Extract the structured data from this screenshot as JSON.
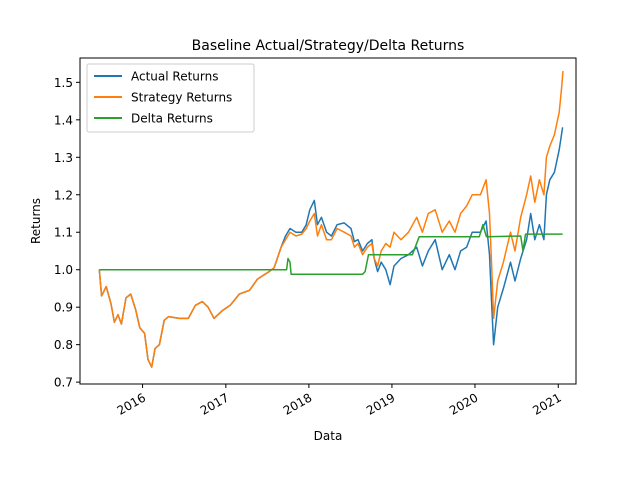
{
  "chart_data": {
    "type": "line",
    "title": "Baseline Actual/Strategy/Delta Returns",
    "xlabel": "Data",
    "ylabel": "Returns",
    "xlim": [
      "2015-04-01",
      "2021-03-20"
    ],
    "ylim": [
      0.695,
      1.565
    ],
    "x_ticks": [
      "2016",
      "2017",
      "2018",
      "2019",
      "2020",
      "2021"
    ],
    "y_ticks": [
      "0.7",
      "0.8",
      "0.9",
      "1.0",
      "1.1",
      "1.2",
      "1.3",
      "1.4",
      "1.5"
    ],
    "grid": false,
    "legend": "top-left",
    "series": [
      {
        "name": "Actual Returns",
        "color": "#1f77b4",
        "points": [
          [
            "2015-06-25",
            1.0
          ],
          [
            "2015-07-05",
            0.93
          ],
          [
            "2015-07-25",
            0.955
          ],
          [
            "2015-08-15",
            0.91
          ],
          [
            "2015-08-30",
            0.86
          ],
          [
            "2015-09-15",
            0.88
          ],
          [
            "2015-09-30",
            0.855
          ],
          [
            "2015-10-20",
            0.925
          ],
          [
            "2015-11-10",
            0.935
          ],
          [
            "2015-12-01",
            0.895
          ],
          [
            "2015-12-20",
            0.845
          ],
          [
            "2016-01-10",
            0.83
          ],
          [
            "2016-01-25",
            0.76
          ],
          [
            "2016-02-10",
            0.74
          ],
          [
            "2016-02-25",
            0.79
          ],
          [
            "2016-03-15",
            0.8
          ],
          [
            "2016-04-05",
            0.865
          ],
          [
            "2016-04-25",
            0.875
          ],
          [
            "2016-06-10",
            0.87
          ],
          [
            "2016-07-20",
            0.87
          ],
          [
            "2016-08-20",
            0.905
          ],
          [
            "2016-09-20",
            0.915
          ],
          [
            "2016-10-15",
            0.9
          ],
          [
            "2016-11-10",
            0.87
          ],
          [
            "2016-12-15",
            0.89
          ],
          [
            "2017-01-20",
            0.905
          ],
          [
            "2017-03-01",
            0.935
          ],
          [
            "2017-04-15",
            0.945
          ],
          [
            "2017-05-20",
            0.975
          ],
          [
            "2017-06-15",
            0.985
          ],
          [
            "2017-07-10",
            0.995
          ],
          [
            "2017-08-01",
            1.005
          ],
          [
            "2017-08-15",
            1.03
          ],
          [
            "2017-09-01",
            1.06
          ],
          [
            "2017-09-20",
            1.09
          ],
          [
            "2017-10-10",
            1.11
          ],
          [
            "2017-11-05",
            1.1
          ],
          [
            "2017-12-01",
            1.1
          ],
          [
            "2017-12-20",
            1.12
          ],
          [
            "2018-01-05",
            1.16
          ],
          [
            "2018-01-25",
            1.185
          ],
          [
            "2018-02-08",
            1.12
          ],
          [
            "2018-02-25",
            1.14
          ],
          [
            "2018-03-20",
            1.1
          ],
          [
            "2018-04-10",
            1.09
          ],
          [
            "2018-05-05",
            1.12
          ],
          [
            "2018-06-05",
            1.125
          ],
          [
            "2018-07-05",
            1.11
          ],
          [
            "2018-07-20",
            1.075
          ],
          [
            "2018-08-05",
            1.08
          ],
          [
            "2018-08-25",
            1.05
          ],
          [
            "2018-09-15",
            1.07
          ],
          [
            "2018-10-05",
            1.08
          ],
          [
            "2018-10-15",
            1.03
          ],
          [
            "2018-10-30",
            0.995
          ],
          [
            "2018-11-15",
            1.02
          ],
          [
            "2018-12-05",
            1.0
          ],
          [
            "2018-12-24",
            0.96
          ],
          [
            "2019-01-10",
            1.01
          ],
          [
            "2019-02-10",
            1.03
          ],
          [
            "2019-03-15",
            1.04
          ],
          [
            "2019-04-20",
            1.06
          ],
          [
            "2019-05-15",
            1.01
          ],
          [
            "2019-06-10",
            1.05
          ],
          [
            "2019-07-10",
            1.08
          ],
          [
            "2019-08-10",
            1.0
          ],
          [
            "2019-09-10",
            1.04
          ],
          [
            "2019-10-05",
            1.0
          ],
          [
            "2019-10-30",
            1.05
          ],
          [
            "2019-11-25",
            1.06
          ],
          [
            "2019-12-20",
            1.1
          ],
          [
            "2020-01-25",
            1.1
          ],
          [
            "2020-02-19",
            1.13
          ],
          [
            "2020-03-05",
            1.04
          ],
          [
            "2020-03-15",
            0.9
          ],
          [
            "2020-03-23",
            0.8
          ],
          [
            "2020-04-10",
            0.9
          ],
          [
            "2020-05-05",
            0.95
          ],
          [
            "2020-06-05",
            1.02
          ],
          [
            "2020-06-25",
            0.97
          ],
          [
            "2020-07-20",
            1.03
          ],
          [
            "2020-08-15",
            1.08
          ],
          [
            "2020-09-02",
            1.15
          ],
          [
            "2020-09-20",
            1.08
          ],
          [
            "2020-10-10",
            1.12
          ],
          [
            "2020-10-30",
            1.08
          ],
          [
            "2020-11-10",
            1.2
          ],
          [
            "2020-11-25",
            1.24
          ],
          [
            "2020-12-15",
            1.26
          ],
          [
            "2021-01-05",
            1.32
          ],
          [
            "2021-01-20",
            1.38
          ]
        ]
      },
      {
        "name": "Strategy Returns",
        "color": "#ff7f0e",
        "points": [
          [
            "2015-06-25",
            1.0
          ],
          [
            "2015-07-05",
            0.93
          ],
          [
            "2015-07-25",
            0.955
          ],
          [
            "2015-08-15",
            0.91
          ],
          [
            "2015-08-30",
            0.86
          ],
          [
            "2015-09-15",
            0.88
          ],
          [
            "2015-09-30",
            0.855
          ],
          [
            "2015-10-20",
            0.925
          ],
          [
            "2015-11-10",
            0.935
          ],
          [
            "2015-12-01",
            0.895
          ],
          [
            "2015-12-20",
            0.845
          ],
          [
            "2016-01-10",
            0.83
          ],
          [
            "2016-01-25",
            0.76
          ],
          [
            "2016-02-10",
            0.74
          ],
          [
            "2016-02-25",
            0.79
          ],
          [
            "2016-03-15",
            0.8
          ],
          [
            "2016-04-05",
            0.865
          ],
          [
            "2016-04-25",
            0.875
          ],
          [
            "2016-06-10",
            0.87
          ],
          [
            "2016-07-20",
            0.87
          ],
          [
            "2016-08-20",
            0.905
          ],
          [
            "2016-09-20",
            0.915
          ],
          [
            "2016-10-15",
            0.9
          ],
          [
            "2016-11-10",
            0.87
          ],
          [
            "2016-12-15",
            0.89
          ],
          [
            "2017-01-20",
            0.905
          ],
          [
            "2017-03-01",
            0.935
          ],
          [
            "2017-04-15",
            0.945
          ],
          [
            "2017-05-20",
            0.975
          ],
          [
            "2017-06-15",
            0.985
          ],
          [
            "2017-07-10",
            0.995
          ],
          [
            "2017-08-01",
            1.005
          ],
          [
            "2017-08-15",
            1.03
          ],
          [
            "2017-09-01",
            1.06
          ],
          [
            "2017-09-20",
            1.08
          ],
          [
            "2017-10-10",
            1.1
          ],
          [
            "2017-11-05",
            1.09
          ],
          [
            "2017-12-01",
            1.095
          ],
          [
            "2017-12-20",
            1.11
          ],
          [
            "2018-01-05",
            1.13
          ],
          [
            "2018-01-25",
            1.15
          ],
          [
            "2018-02-08",
            1.09
          ],
          [
            "2018-02-25",
            1.12
          ],
          [
            "2018-03-20",
            1.08
          ],
          [
            "2018-04-10",
            1.08
          ],
          [
            "2018-05-05",
            1.11
          ],
          [
            "2018-06-05",
            1.1
          ],
          [
            "2018-07-05",
            1.09
          ],
          [
            "2018-07-20",
            1.06
          ],
          [
            "2018-08-05",
            1.07
          ],
          [
            "2018-08-25",
            1.04
          ],
          [
            "2018-09-15",
            1.06
          ],
          [
            "2018-10-05",
            1.07
          ],
          [
            "2018-10-15",
            1.03
          ],
          [
            "2018-10-30",
            1.01
          ],
          [
            "2018-11-15",
            1.05
          ],
          [
            "2018-12-05",
            1.07
          ],
          [
            "2018-12-24",
            1.06
          ],
          [
            "2019-01-10",
            1.1
          ],
          [
            "2019-02-10",
            1.08
          ],
          [
            "2019-03-15",
            1.1
          ],
          [
            "2019-04-20",
            1.14
          ],
          [
            "2019-05-15",
            1.1
          ],
          [
            "2019-06-10",
            1.15
          ],
          [
            "2019-07-10",
            1.16
          ],
          [
            "2019-08-10",
            1.1
          ],
          [
            "2019-09-10",
            1.13
          ],
          [
            "2019-10-05",
            1.1
          ],
          [
            "2019-10-30",
            1.15
          ],
          [
            "2019-11-25",
            1.17
          ],
          [
            "2019-12-20",
            1.2
          ],
          [
            "2020-01-25",
            1.2
          ],
          [
            "2020-02-19",
            1.24
          ],
          [
            "2020-03-05",
            1.15
          ],
          [
            "2020-03-15",
            1.0
          ],
          [
            "2020-03-23",
            0.87
          ],
          [
            "2020-04-10",
            0.97
          ],
          [
            "2020-05-05",
            1.02
          ],
          [
            "2020-06-05",
            1.1
          ],
          [
            "2020-06-25",
            1.05
          ],
          [
            "2020-07-20",
            1.14
          ],
          [
            "2020-08-15",
            1.2
          ],
          [
            "2020-09-02",
            1.25
          ],
          [
            "2020-09-20",
            1.18
          ],
          [
            "2020-10-10",
            1.24
          ],
          [
            "2020-10-30",
            1.2
          ],
          [
            "2020-11-10",
            1.3
          ],
          [
            "2020-11-25",
            1.33
          ],
          [
            "2020-12-15",
            1.36
          ],
          [
            "2021-01-05",
            1.42
          ],
          [
            "2021-01-15",
            1.48
          ],
          [
            "2021-01-22",
            1.53
          ]
        ]
      },
      {
        "name": "Delta Returns",
        "color": "#2ca02c",
        "points": [
          [
            "2015-06-25",
            1.0
          ],
          [
            "2017-09-25",
            1.0
          ],
          [
            "2017-10-01",
            1.03
          ],
          [
            "2017-10-10",
            1.02
          ],
          [
            "2017-10-15",
            0.988
          ],
          [
            "2018-08-25",
            0.988
          ],
          [
            "2018-09-05",
            0.995
          ],
          [
            "2018-09-20",
            1.04
          ],
          [
            "2018-10-01",
            1.04
          ],
          [
            "2019-04-01",
            1.04
          ],
          [
            "2019-05-01",
            1.088
          ],
          [
            "2020-01-20",
            1.088
          ],
          [
            "2020-02-05",
            1.12
          ],
          [
            "2020-02-20",
            1.088
          ],
          [
            "2020-07-20",
            1.09
          ],
          [
            "2020-07-30",
            1.05
          ],
          [
            "2020-08-10",
            1.095
          ],
          [
            "2021-01-20",
            1.095
          ]
        ]
      }
    ]
  }
}
